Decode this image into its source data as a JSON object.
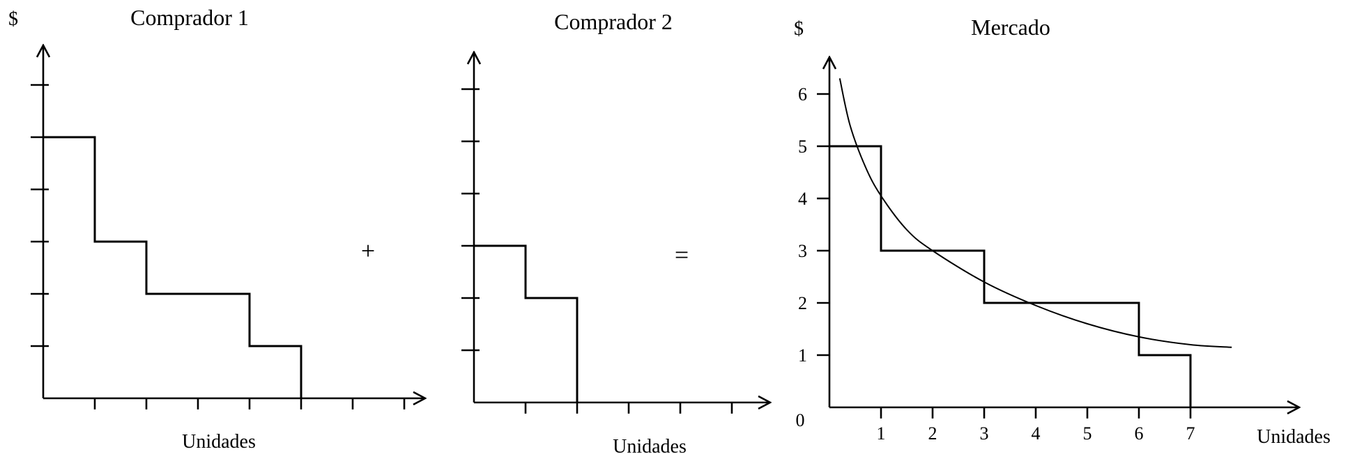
{
  "chart_data": [
    {
      "type": "line",
      "title": "Comprador 1",
      "ylabel": "$",
      "xlabel": "Unidades",
      "xlim": [
        0,
        7
      ],
      "ylim": [
        0,
        6
      ],
      "x_ticks": [
        1,
        2,
        3,
        4,
        5,
        6,
        7
      ],
      "y_ticks": [
        1,
        2,
        3,
        4,
        5,
        6
      ],
      "series": [
        {
          "kind": "step-demand",
          "x": [
            0,
            1,
            2,
            3,
            4,
            5
          ],
          "y": [
            5,
            3,
            2,
            2,
            1,
            0
          ]
        }
      ]
    },
    {
      "type": "line",
      "title": "Comprador 2",
      "ylabel": "",
      "xlabel": "Unidades",
      "xlim": [
        0,
        6
      ],
      "ylim": [
        0,
        6
      ],
      "x_ticks": [
        1,
        2,
        3,
        4,
        5
      ],
      "y_ticks": [
        1,
        2,
        3,
        4,
        5,
        6
      ],
      "series": [
        {
          "kind": "step-demand",
          "x": [
            0,
            1,
            2
          ],
          "y": [
            3,
            2,
            0
          ]
        }
      ]
    },
    {
      "type": "line",
      "title": "Mercado",
      "ylabel": "$",
      "xlabel": "Unidades",
      "xlim": [
        0,
        8.2
      ],
      "ylim": [
        0,
        6.5
      ],
      "origin_label": "0",
      "x_ticks": [
        1,
        2,
        3,
        4,
        5,
        6,
        7
      ],
      "x_tick_labels": [
        "1",
        "2",
        "3",
        "4",
        "5",
        "6",
        "7"
      ],
      "y_ticks": [
        1,
        2,
        3,
        4,
        5,
        6
      ],
      "y_tick_labels": [
        "1",
        "2",
        "3",
        "4",
        "5",
        "6"
      ],
      "series": [
        {
          "kind": "step-demand",
          "x": [
            0,
            1,
            3,
            6,
            7
          ],
          "y": [
            5,
            3,
            2,
            1,
            0
          ]
        },
        {
          "kind": "smooth-curve",
          "x": [
            0.2,
            0.4,
            0.7,
            1.0,
            1.5,
            2.0,
            3.0,
            4.0,
            5.0,
            6.0,
            7.0,
            7.8
          ],
          "y": [
            6.3,
            5.4,
            4.6,
            4.05,
            3.4,
            3.0,
            2.4,
            1.95,
            1.6,
            1.35,
            1.2,
            1.15
          ]
        }
      ]
    }
  ],
  "operators": {
    "plus": "+",
    "equals": "="
  }
}
